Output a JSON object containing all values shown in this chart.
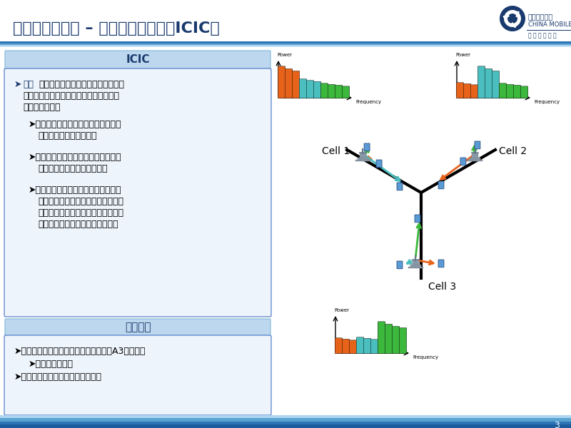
{
  "title": "相关技术点介绍 – 小区间干扰协调（ICIC）",
  "bg_color": "#FFFFFF",
  "title_color": "#1A3A6E",
  "title_fontsize": 16,
  "section1_header": "ICIC",
  "section2_header": "优化参数",
  "slide_number": "3",
  "icic_line1a": "➤",
  "icic_line1b": "原理",
  "icic_line1c": "：相邻的相互干扰的小区间通过协调",
  "icic_line2": "空口资源，包括功率资源和时频资源从而",
  "icic_line3": "降低小区间干扰",
  "sub1_line1": "➤基站为边缘用户分配的功率较高而为",
  "sub1_line2": "中心用户分配的功率较低",
  "sub2_line1": "➤不同的基站可以为边缘用户分配不同",
  "sub2_line2": "的频域资源进行下行数据发送",
  "sub3_line1": "➤采用较高功率的频率资源在相邻小区",
  "sub3_line2": "间相互错开，对于某一个小区的边缘",
  "sub3_line3": "用户而言，所受邻区干扰较低，因此",
  "sub3_line4": "可以达到提高边缘用户性能的目的",
  "opt1": "➤小区中心和小区边缘用户的区分：通过A3事件上报",
  "opt2": "➤需优化相关参数",
  "opt3": "➤小区中心和边缘用户的发射功率值",
  "cell1_label": "Cell 1",
  "cell2_label": "Cell 2",
  "cell3_label": "Cell 3",
  "power_label": "Power",
  "freq_label": "Frequency",
  "orange_color": "#E8631A",
  "cyan_color": "#4BBFBF",
  "green_color": "#3CB83C",
  "arrow_orange": "#E8631A",
  "arrow_cyan": "#4ABFC0",
  "arrow_green": "#3CB83C",
  "header_dark": "#1A5C9E",
  "header_mid": "#2E75B6",
  "header_light": "#5BA3D0",
  "section_header_bg": "#BDD7EE",
  "section_content_bg": "#EEF4FB",
  "section_border": "#4472C4",
  "logo_blue": "#1A3A6E",
  "china_mobile_text1": "中国移动通信",
  "china_mobile_text2": "CHINA MOBILE",
  "china_mobile_text3": "移 动 信 息 专 家"
}
